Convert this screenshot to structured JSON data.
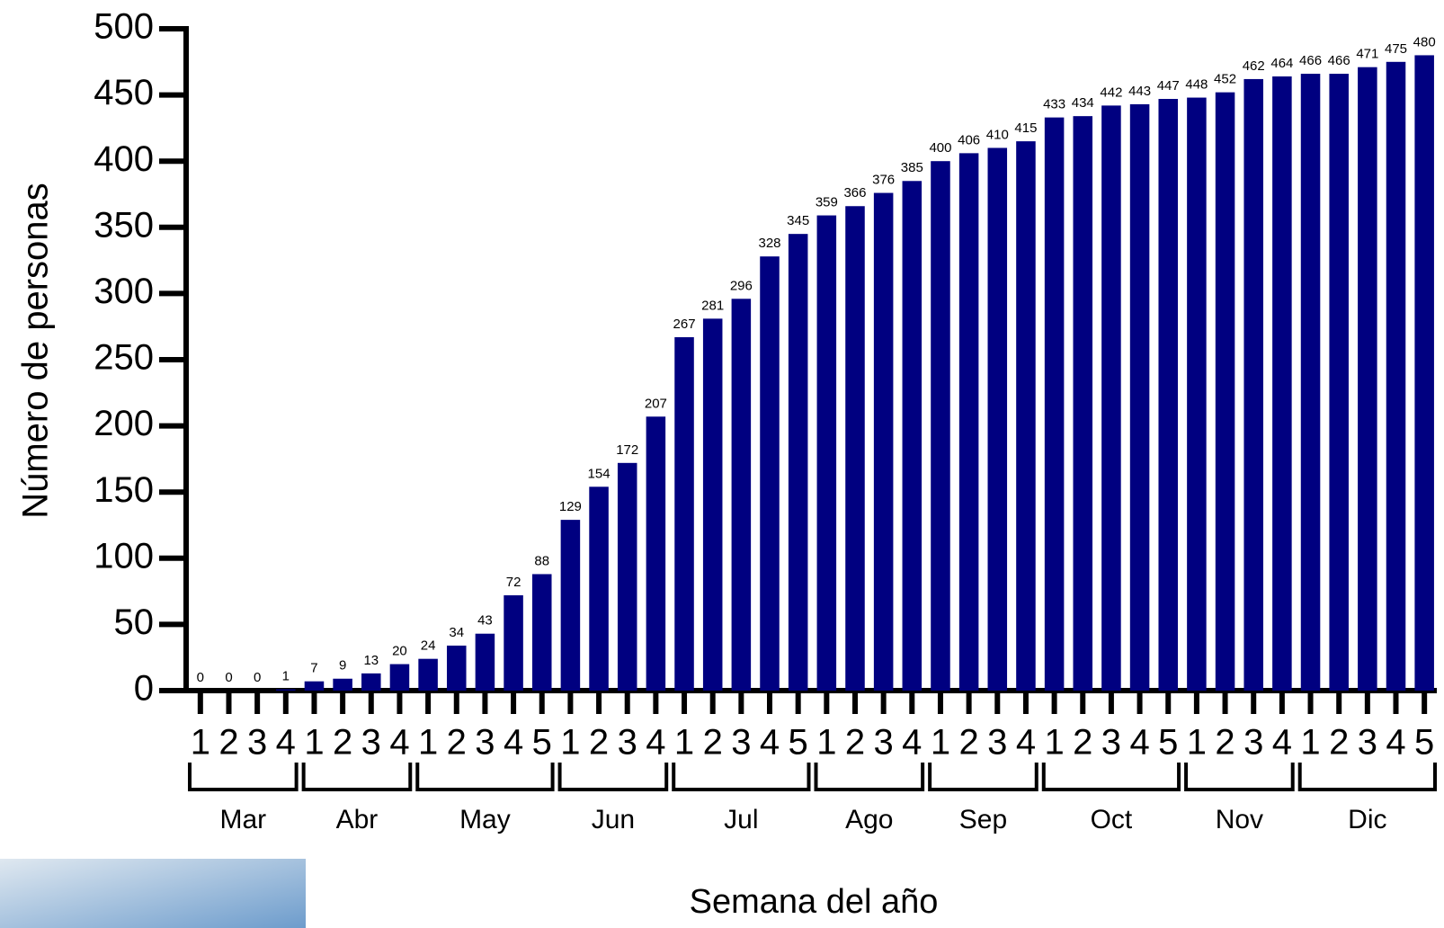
{
  "chart_data": {
    "type": "bar",
    "x_label": "Semana del año",
    "y_label": "Número de personas",
    "color": "#000080",
    "ylim": [
      0,
      500
    ],
    "yticks": [
      0,
      50,
      100,
      150,
      200,
      250,
      300,
      350,
      400,
      450,
      500
    ],
    "groups": [
      {
        "label": "Mar",
        "categories": [
          "1",
          "2",
          "3",
          "4"
        ],
        "values": [
          0,
          0,
          0,
          1
        ]
      },
      {
        "label": "Abr",
        "categories": [
          "1",
          "2",
          "3",
          "4"
        ],
        "values": [
          7,
          9,
          13,
          20
        ]
      },
      {
        "label": "May",
        "categories": [
          "1",
          "2",
          "3",
          "4",
          "5"
        ],
        "values": [
          24,
          34,
          43,
          72,
          88
        ]
      },
      {
        "label": "Jun",
        "categories": [
          "1",
          "2",
          "3",
          "4"
        ],
        "values": [
          129,
          154,
          172,
          207
        ]
      },
      {
        "label": "Jul",
        "categories": [
          "1",
          "2",
          "3",
          "4",
          "5"
        ],
        "values": [
          267,
          281,
          296,
          328,
          345
        ]
      },
      {
        "label": "Ago",
        "categories": [
          "1",
          "2",
          "3",
          "4"
        ],
        "values": [
          359,
          366,
          376,
          385
        ]
      },
      {
        "label": "Sep",
        "categories": [
          "1",
          "2",
          "3",
          "4"
        ],
        "values": [
          400,
          406,
          410,
          415
        ]
      },
      {
        "label": "Oct",
        "categories": [
          "1",
          "2",
          "3",
          "4",
          "5"
        ],
        "values": [
          433,
          434,
          442,
          443,
          447
        ]
      },
      {
        "label": "Nov",
        "categories": [
          "1",
          "2",
          "3",
          "4"
        ],
        "values": [
          448,
          452,
          462,
          464
        ]
      },
      {
        "label": "Dic",
        "categories": [
          "1",
          "2",
          "3",
          "4",
          "5"
        ],
        "values": [
          466,
          466,
          471,
          475,
          480
        ]
      }
    ]
  }
}
